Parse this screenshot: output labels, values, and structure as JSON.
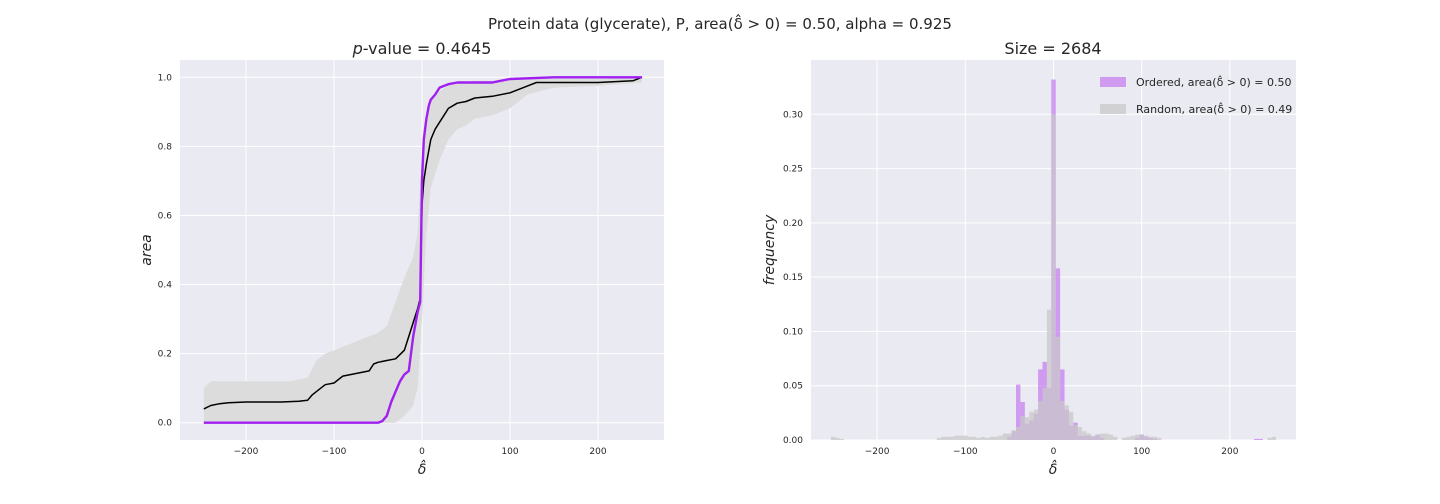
{
  "figure": {
    "suptitle": "Protein data (glycerate), P, area(δ̂ > 0) = 0.50, alpha = 0.925"
  },
  "colors": {
    "axes_bg": "#eaeaf2",
    "grid": "#ffffff",
    "ordered": "#a020f0",
    "ordered_hist": "#c77ff0",
    "random_line": "#000000",
    "random_band": "#dcdcdc",
    "random_hist": "#c8c8c8"
  },
  "chart_data": [
    {
      "type": "line",
      "title_prefix": "p",
      "title_rest": "-value = 0.4645",
      "xlabel": "δ̂",
      "ylabel": "area",
      "xlim": [
        -275,
        275
      ],
      "ylim": [
        -0.05,
        1.05
      ],
      "xticks": [
        -200,
        -100,
        0,
        100,
        200
      ],
      "yticks": [
        0.0,
        0.2,
        0.4,
        0.6,
        0.8,
        1.0
      ],
      "xtick_labels": [
        "−200",
        "−100",
        "0",
        "100",
        "200"
      ],
      "ytick_labels": [
        "0.0",
        "0.2",
        "0.4",
        "0.6",
        "0.8",
        "1.0"
      ],
      "grid": true,
      "series": [
        {
          "kind": "band",
          "x": [
            -248,
            -240,
            -200,
            -150,
            -130,
            -120,
            -110,
            -100,
            -90,
            -80,
            -70,
            -60,
            -50,
            -40,
            -30,
            -20,
            -10,
            -5,
            0,
            5,
            10,
            20,
            30,
            40,
            50,
            60,
            80,
            100,
            120,
            150,
            200,
            250
          ],
          "upper": [
            0.1,
            0.12,
            0.12,
            0.12,
            0.13,
            0.18,
            0.2,
            0.21,
            0.22,
            0.23,
            0.24,
            0.25,
            0.26,
            0.28,
            0.35,
            0.42,
            0.48,
            0.55,
            0.78,
            0.88,
            0.93,
            0.96,
            0.975,
            0.985,
            0.985,
            0.99,
            0.99,
            0.995,
            0.995,
            0.995,
            0.995,
            1.0
          ],
          "lower": [
            0.0,
            0.0,
            0.0,
            0.0,
            0.0,
            0.0,
            0.0,
            0.0,
            0.0,
            0.0,
            0.0,
            0.0,
            0.0,
            0.0,
            0.0,
            0.02,
            0.05,
            0.1,
            0.3,
            0.55,
            0.68,
            0.76,
            0.82,
            0.85,
            0.86,
            0.88,
            0.89,
            0.91,
            0.95,
            0.97,
            0.975,
            0.985
          ]
        },
        {
          "kind": "random-mean",
          "x": [
            -248,
            -240,
            -230,
            -220,
            -200,
            -180,
            -160,
            -140,
            -130,
            -125,
            -120,
            -110,
            -100,
            -90,
            -80,
            -70,
            -60,
            -55,
            -50,
            -40,
            -30,
            -20,
            -15,
            -10,
            -5,
            -2,
            0,
            2,
            5,
            10,
            15,
            20,
            25,
            30,
            40,
            50,
            60,
            80,
            100,
            120,
            130,
            150,
            200,
            240,
            250
          ],
          "y": [
            0.04,
            0.05,
            0.055,
            0.058,
            0.06,
            0.06,
            0.06,
            0.062,
            0.065,
            0.08,
            0.09,
            0.11,
            0.115,
            0.135,
            0.14,
            0.145,
            0.15,
            0.17,
            0.175,
            0.18,
            0.185,
            0.21,
            0.25,
            0.29,
            0.33,
            0.36,
            0.63,
            0.7,
            0.75,
            0.82,
            0.85,
            0.87,
            0.89,
            0.91,
            0.925,
            0.93,
            0.94,
            0.945,
            0.955,
            0.975,
            0.985,
            0.985,
            0.985,
            0.99,
            1.0
          ]
        },
        {
          "kind": "ordered",
          "x": [
            -248,
            -200,
            -150,
            -100,
            -60,
            -50,
            -45,
            -40,
            -35,
            -30,
            -25,
            -20,
            -15,
            -10,
            -5,
            -2,
            0,
            2,
            5,
            8,
            10,
            15,
            20,
            25,
            30,
            40,
            60,
            80,
            90,
            100,
            150,
            200,
            250
          ],
          "y": [
            0.0,
            0.0,
            0.0,
            0.0,
            0.0,
            0.0,
            0.005,
            0.02,
            0.06,
            0.09,
            0.12,
            0.14,
            0.15,
            0.25,
            0.32,
            0.35,
            0.7,
            0.82,
            0.88,
            0.92,
            0.935,
            0.95,
            0.97,
            0.975,
            0.98,
            0.985,
            0.985,
            0.985,
            0.99,
            0.995,
            1.0,
            1.0,
            1.0
          ]
        }
      ]
    },
    {
      "type": "bar",
      "title": "Size = 2684",
      "xlabel": "δ̂",
      "ylabel": "frequency",
      "xlim": [
        -275,
        275
      ],
      "ylim": [
        0,
        0.35
      ],
      "xticks": [
        -200,
        -100,
        0,
        100,
        200
      ],
      "yticks": [
        0.0,
        0.05,
        0.1,
        0.15,
        0.2,
        0.25,
        0.3
      ],
      "xtick_labels": [
        "−200",
        "−100",
        "0",
        "100",
        "200"
      ],
      "ytick_labels": [
        "0.00",
        "0.05",
        "0.10",
        "0.15",
        "0.20",
        "0.25",
        "0.30"
      ],
      "grid": true,
      "legend_position": "top-right",
      "bin_width": 5,
      "series": [
        {
          "name": "Ordered, area(δ̂ > 0) = 0.50",
          "bin_centers": [
            -50,
            -45,
            -40,
            -35,
            -30,
            -25,
            -20,
            -15,
            -10,
            -5,
            0,
            5,
            10,
            15,
            20,
            25,
            30,
            35,
            40,
            45,
            50,
            55,
            95,
            100,
            105,
            110,
            115,
            230,
            235
          ],
          "values": [
            0.003,
            0.008,
            0.051,
            0.035,
            0.015,
            0.018,
            0.024,
            0.065,
            0.072,
            0.048,
            0.332,
            0.158,
            0.065,
            0.028,
            0.013,
            0.016,
            0.004,
            0.004,
            0.004,
            0.003,
            0.005,
            0.002,
            0.002,
            0.005,
            0.003,
            0.002,
            0.001,
            0.001,
            0.001
          ]
        },
        {
          "name": "Random, area(δ̂ > 0) = 0.49",
          "bin_centers": [
            -250,
            -245,
            -240,
            -130,
            -125,
            -120,
            -115,
            -110,
            -105,
            -100,
            -95,
            -90,
            -85,
            -80,
            -75,
            -70,
            -65,
            -60,
            -55,
            -50,
            -45,
            -40,
            -35,
            -30,
            -25,
            -20,
            -15,
            -10,
            -5,
            0,
            5,
            10,
            15,
            20,
            25,
            30,
            35,
            40,
            45,
            50,
            55,
            60,
            65,
            70,
            80,
            85,
            90,
            95,
            100,
            105,
            110,
            115,
            120,
            245,
            250
          ],
          "values": [
            0.003,
            0.002,
            0.001,
            0.002,
            0.003,
            0.003,
            0.003,
            0.004,
            0.004,
            0.004,
            0.003,
            0.003,
            0.002,
            0.003,
            0.002,
            0.003,
            0.003,
            0.004,
            0.006,
            0.006,
            0.009,
            0.012,
            0.022,
            0.021,
            0.026,
            0.028,
            0.036,
            0.048,
            0.12,
            0.3,
            0.095,
            0.036,
            0.032,
            0.026,
            0.014,
            0.012,
            0.008,
            0.006,
            0.004,
            0.005,
            0.006,
            0.006,
            0.005,
            0.003,
            0.002,
            0.003,
            0.004,
            0.005,
            0.005,
            0.004,
            0.003,
            0.003,
            0.002,
            0.002,
            0.003
          ]
        }
      ]
    }
  ]
}
